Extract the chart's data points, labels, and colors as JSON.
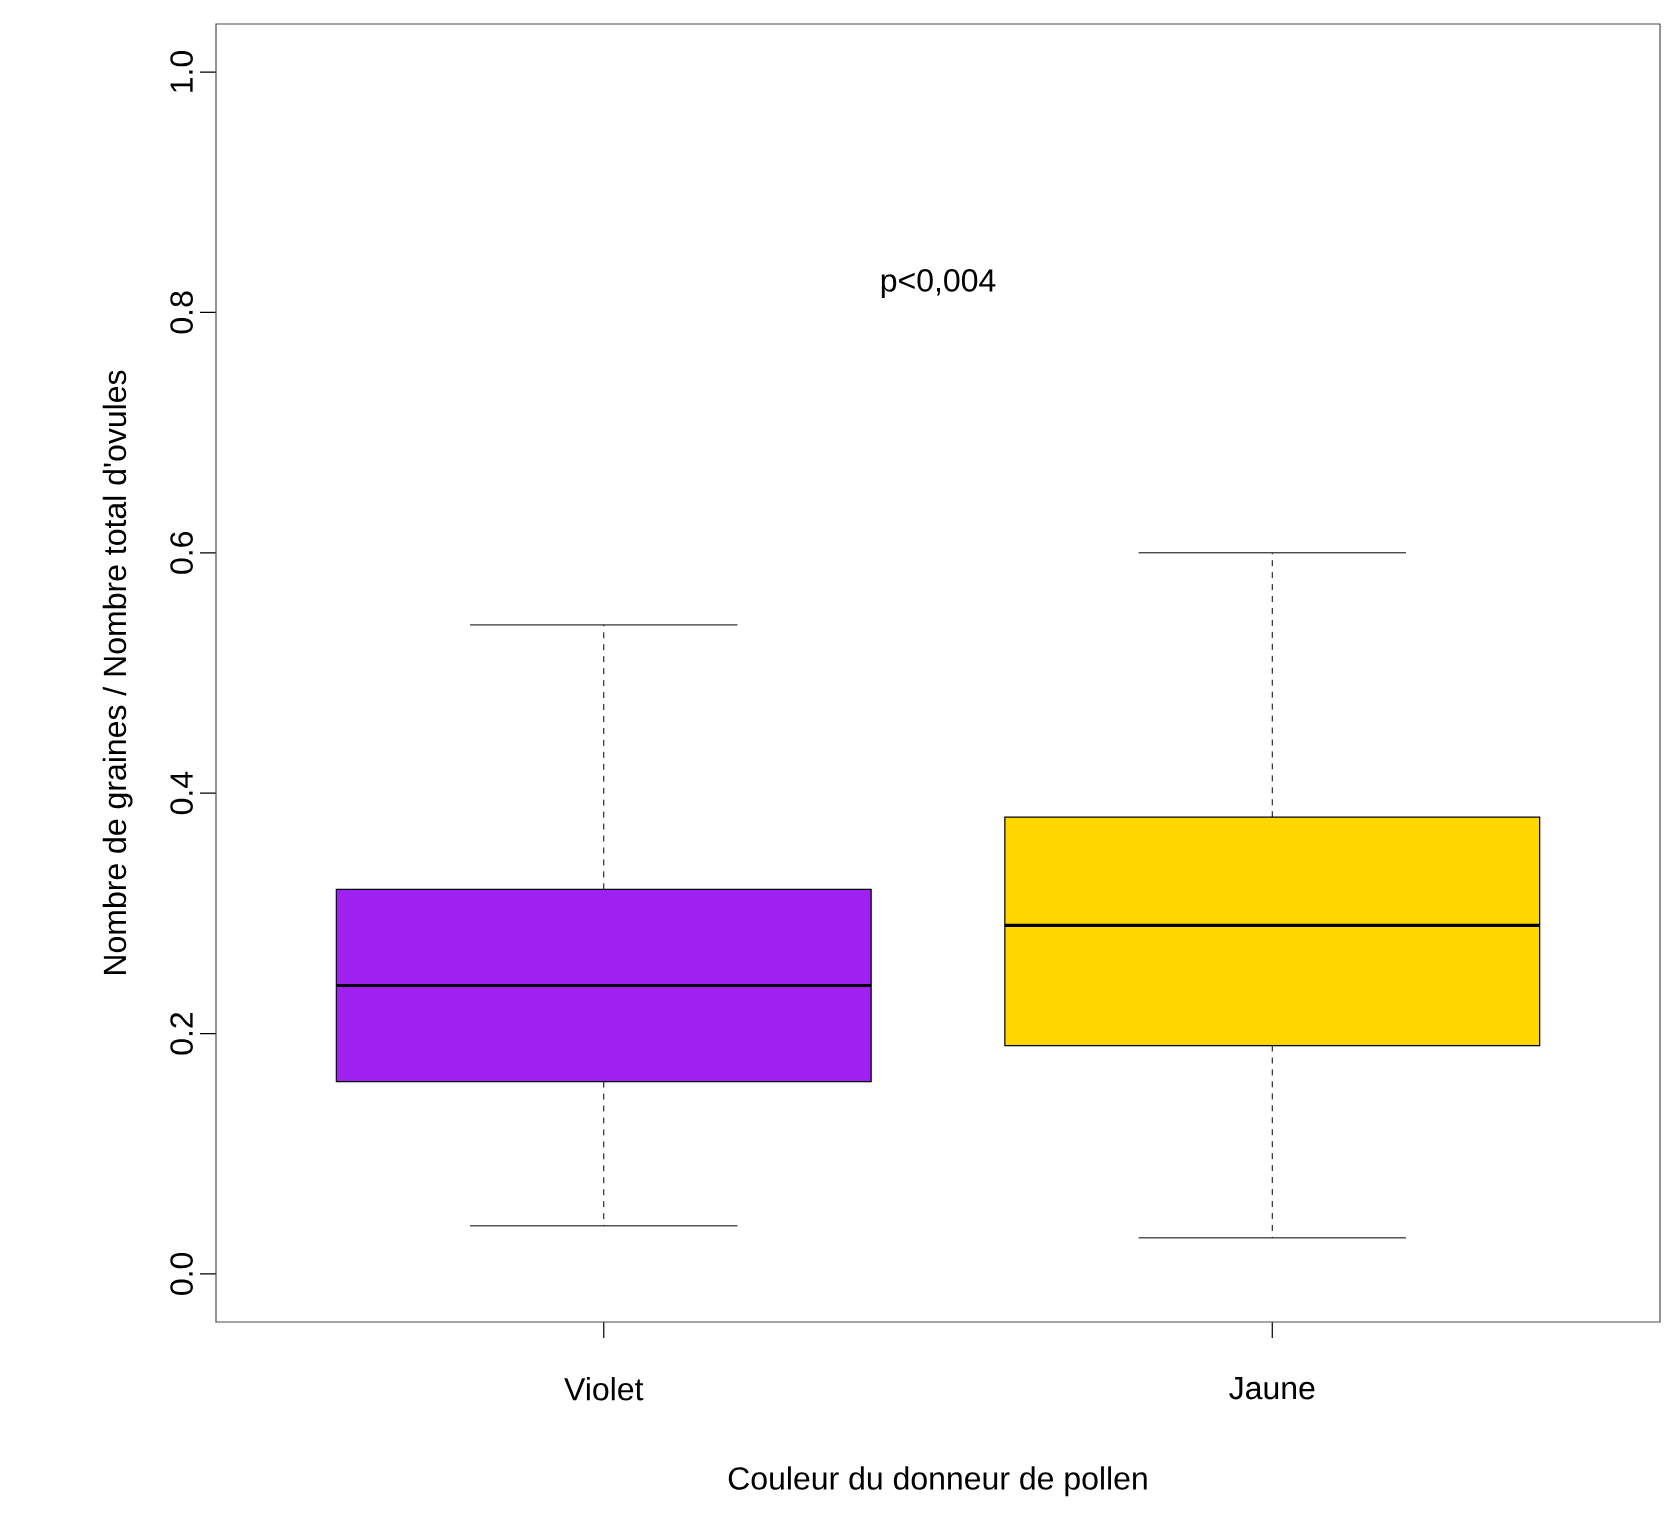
{
  "chart_data": {
    "type": "box",
    "xlabel": "Couleur du donneur de pollen",
    "ylabel": "Nombre de graines / Nombre total d'ovules",
    "categories": [
      "Violet",
      "Jaune"
    ],
    "colors": [
      "#a020f0",
      "#ffd700"
    ],
    "boxes": [
      {
        "low": 0.04,
        "q1": 0.16,
        "median": 0.24,
        "q3": 0.32,
        "high": 0.54
      },
      {
        "low": 0.03,
        "q1": 0.19,
        "median": 0.29,
        "q3": 0.38,
        "high": 0.6
      }
    ],
    "ylim": [
      -0.04,
      1.04
    ],
    "yticks": [
      {
        "value": 0,
        "label": "0.0"
      },
      {
        "value": 0.2,
        "label": "0.2"
      },
      {
        "value": 0.4,
        "label": "0.4"
      },
      {
        "value": 0.6,
        "label": "0.6"
      },
      {
        "value": 0.8,
        "label": "0.8"
      },
      {
        "value": 1,
        "label": "1.0"
      }
    ],
    "annotations": [
      "p<0,004"
    ]
  }
}
